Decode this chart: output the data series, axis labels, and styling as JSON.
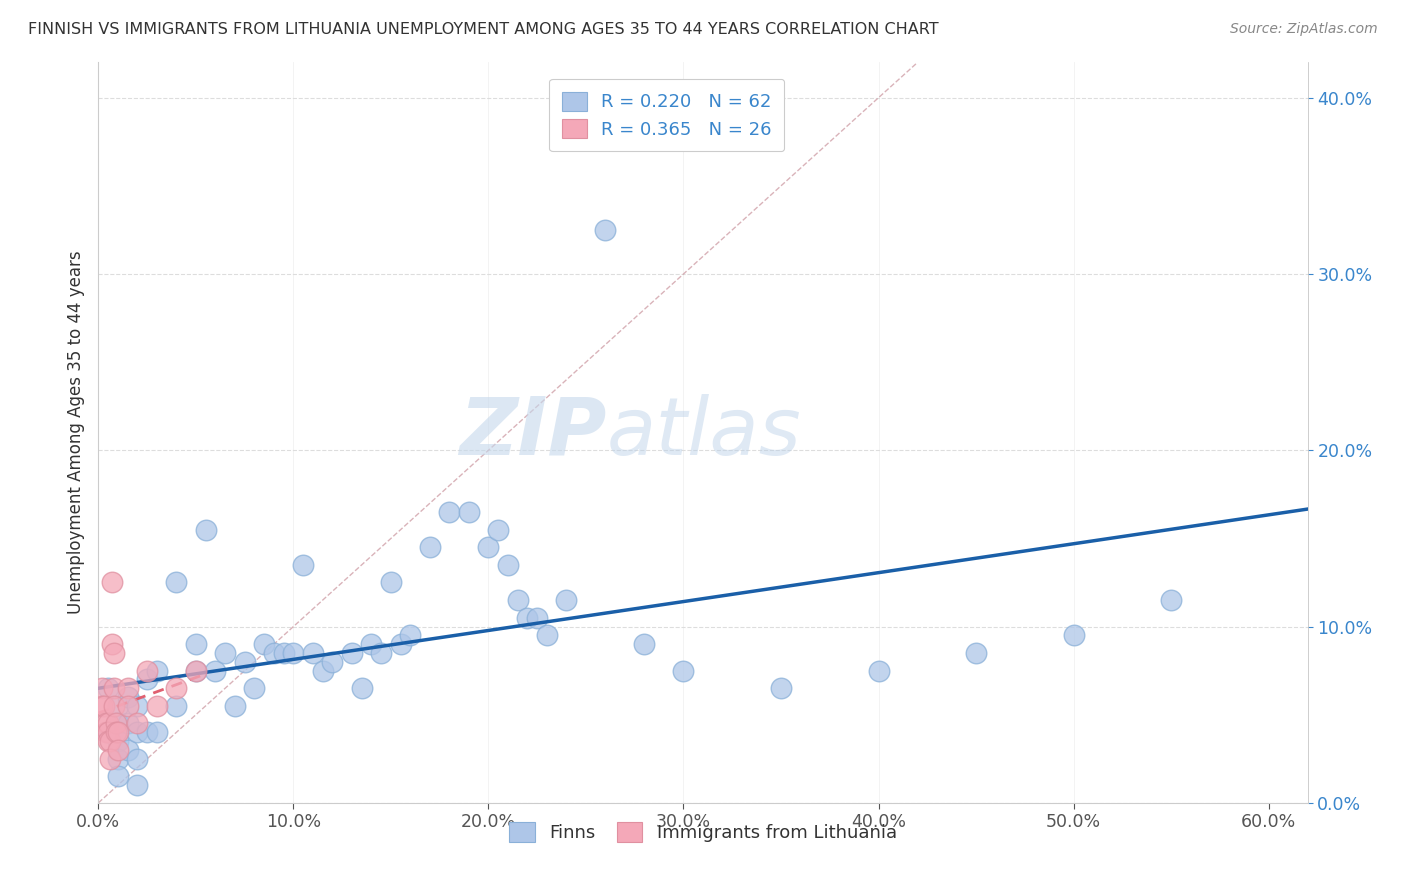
{
  "title": "FINNISH VS IMMIGRANTS FROM LITHUANIA UNEMPLOYMENT AMONG AGES 35 TO 44 YEARS CORRELATION CHART",
  "source": "Source: ZipAtlas.com",
  "ylabel": "Unemployment Among Ages 35 to 44 years",
  "xlim": [
    0.0,
    0.62
  ],
  "ylim": [
    0.0,
    0.42
  ],
  "legend1_label": "R = 0.220   N = 62",
  "legend2_label": "R = 0.365   N = 26",
  "finns_color": "#aec6e8",
  "immigrants_color": "#f4a8b8",
  "finns_line_color": "#1a5fa8",
  "immigrants_line_color": "#e06070",
  "diagonal_color": "#d0a0a8",
  "watermark_zip": "ZIP",
  "watermark_atlas": "atlas",
  "background_color": "#ffffff",
  "grid_color": "#dddddd",
  "finns_x": [
    0.005,
    0.005,
    0.01,
    0.01,
    0.01,
    0.01,
    0.01,
    0.015,
    0.015,
    0.015,
    0.02,
    0.02,
    0.02,
    0.02,
    0.025,
    0.025,
    0.03,
    0.03,
    0.04,
    0.04,
    0.05,
    0.05,
    0.055,
    0.06,
    0.065,
    0.07,
    0.075,
    0.08,
    0.085,
    0.09,
    0.095,
    0.1,
    0.105,
    0.11,
    0.115,
    0.12,
    0.13,
    0.135,
    0.14,
    0.145,
    0.15,
    0.155,
    0.16,
    0.17,
    0.18,
    0.19,
    0.2,
    0.205,
    0.21,
    0.215,
    0.22,
    0.225,
    0.23,
    0.24,
    0.26,
    0.28,
    0.3,
    0.35,
    0.4,
    0.45,
    0.5,
    0.55
  ],
  "finns_y": [
    0.065,
    0.04,
    0.055,
    0.045,
    0.035,
    0.025,
    0.015,
    0.06,
    0.045,
    0.03,
    0.055,
    0.04,
    0.025,
    0.01,
    0.07,
    0.04,
    0.075,
    0.04,
    0.125,
    0.055,
    0.09,
    0.075,
    0.155,
    0.075,
    0.085,
    0.055,
    0.08,
    0.065,
    0.09,
    0.085,
    0.085,
    0.085,
    0.135,
    0.085,
    0.075,
    0.08,
    0.085,
    0.065,
    0.09,
    0.085,
    0.125,
    0.09,
    0.095,
    0.145,
    0.165,
    0.165,
    0.145,
    0.155,
    0.135,
    0.115,
    0.105,
    0.105,
    0.095,
    0.115,
    0.325,
    0.09,
    0.075,
    0.065,
    0.075,
    0.085,
    0.095,
    0.115
  ],
  "immigrants_x": [
    0.002,
    0.002,
    0.003,
    0.004,
    0.004,
    0.005,
    0.005,
    0.005,
    0.006,
    0.006,
    0.007,
    0.007,
    0.008,
    0.008,
    0.008,
    0.009,
    0.009,
    0.01,
    0.01,
    0.015,
    0.015,
    0.02,
    0.025,
    0.03,
    0.04,
    0.05
  ],
  "immigrants_y": [
    0.065,
    0.055,
    0.055,
    0.045,
    0.04,
    0.045,
    0.04,
    0.035,
    0.035,
    0.025,
    0.125,
    0.09,
    0.085,
    0.065,
    0.055,
    0.045,
    0.04,
    0.04,
    0.03,
    0.065,
    0.055,
    0.045,
    0.075,
    0.055,
    0.065,
    0.075
  ]
}
